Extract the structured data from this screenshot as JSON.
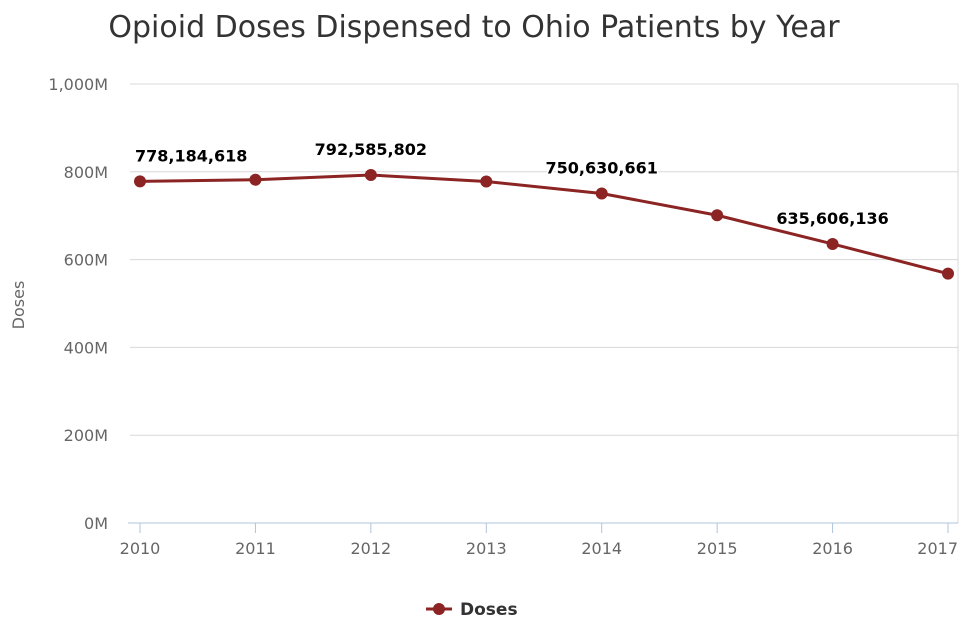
{
  "chart_data": {
    "type": "line",
    "title": "Opioid Doses Dispensed to Ohio Patients by Year",
    "xlabel": "",
    "ylabel": "Doses",
    "categories": [
      "2010",
      "2011",
      "2012",
      "2013",
      "2014",
      "2015",
      "2016",
      "2017"
    ],
    "series": [
      {
        "name": "Doses",
        "color": "#8B2423",
        "values": [
          778184618,
          782000000,
          792585802,
          778000000,
          750630661,
          701000000,
          635606136,
          568000000
        ]
      }
    ],
    "data_labels": [
      {
        "index": 0,
        "text": "778,184,618"
      },
      {
        "index": 2,
        "text": "792,585,802"
      },
      {
        "index": 4,
        "text": "750,630,661"
      },
      {
        "index": 6,
        "text": "635,606,136"
      }
    ],
    "y_ticks": [
      "0M",
      "200M",
      "400M",
      "600M",
      "800M",
      "1,000M"
    ],
    "ylim": [
      0,
      1000000000
    ],
    "grid": true,
    "legend_position": "bottom-center"
  }
}
